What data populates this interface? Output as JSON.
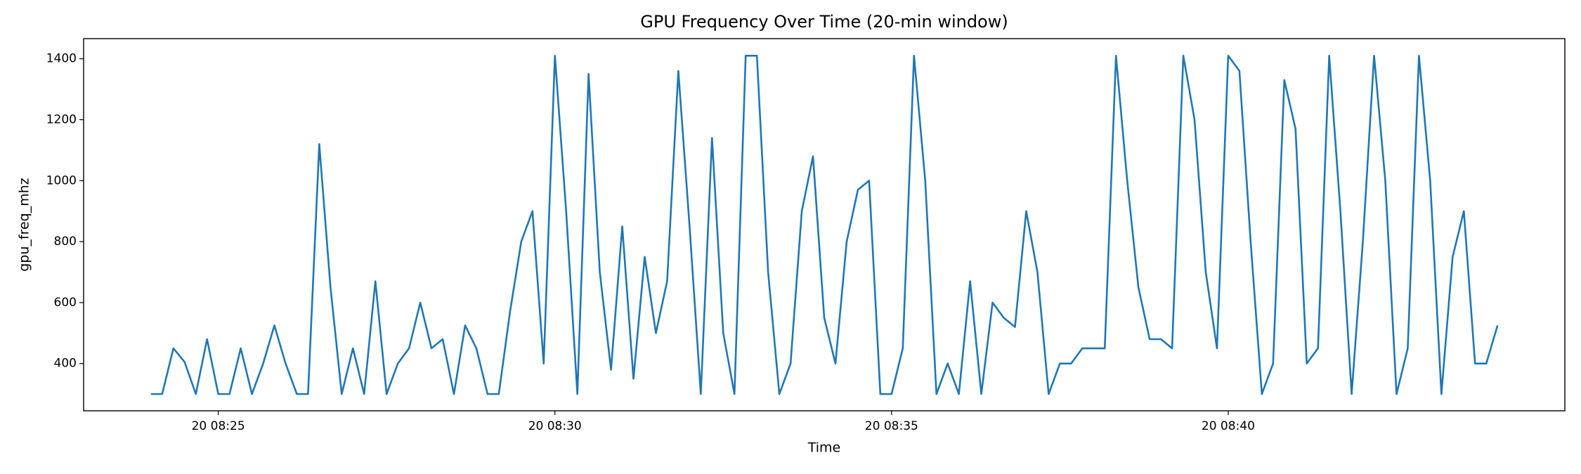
{
  "chart_data": {
    "type": "line",
    "title": "GPU Frequency Over Time (20-min window)",
    "x_label": "Time",
    "y_label": "gpu_freq_mhz",
    "x": [
      "20 08:24:00",
      "20 08:24:10",
      "20 08:24:20",
      "20 08:24:30",
      "20 08:24:40",
      "20 08:24:50",
      "20 08:25:00",
      "20 08:25:10",
      "20 08:25:20",
      "20 08:25:30",
      "20 08:25:40",
      "20 08:25:50",
      "20 08:26:00",
      "20 08:26:10",
      "20 08:26:20",
      "20 08:26:30",
      "20 08:26:40",
      "20 08:26:50",
      "20 08:27:00",
      "20 08:27:10",
      "20 08:27:20",
      "20 08:27:30",
      "20 08:27:40",
      "20 08:27:50",
      "20 08:28:00",
      "20 08:28:10",
      "20 08:28:20",
      "20 08:28:30",
      "20 08:28:40",
      "20 08:28:50",
      "20 08:29:00",
      "20 08:29:10",
      "20 08:29:20",
      "20 08:29:30",
      "20 08:29:40",
      "20 08:29:50",
      "20 08:30:00",
      "20 08:30:10",
      "20 08:30:20",
      "20 08:30:30",
      "20 08:30:40",
      "20 08:30:50",
      "20 08:31:00",
      "20 08:31:10",
      "20 08:31:20",
      "20 08:31:30",
      "20 08:31:40",
      "20 08:31:50",
      "20 08:32:00",
      "20 08:32:10",
      "20 08:32:20",
      "20 08:32:30",
      "20 08:32:40",
      "20 08:32:50",
      "20 08:33:00",
      "20 08:33:10",
      "20 08:33:20",
      "20 08:33:30",
      "20 08:33:40",
      "20 08:33:50",
      "20 08:34:00",
      "20 08:34:10",
      "20 08:34:20",
      "20 08:34:30",
      "20 08:34:40",
      "20 08:34:50",
      "20 08:35:00",
      "20 08:35:10",
      "20 08:35:20",
      "20 08:35:30",
      "20 08:35:40",
      "20 08:35:50",
      "20 08:36:00",
      "20 08:36:10",
      "20 08:36:20",
      "20 08:36:30",
      "20 08:36:40",
      "20 08:36:50",
      "20 08:37:00",
      "20 08:37:10",
      "20 08:37:20",
      "20 08:37:30",
      "20 08:37:40",
      "20 08:37:50",
      "20 08:38:00",
      "20 08:38:10",
      "20 08:38:20",
      "20 08:38:30",
      "20 08:38:40",
      "20 08:38:50",
      "20 08:39:00",
      "20 08:39:10",
      "20 08:39:20",
      "20 08:39:30",
      "20 08:39:40",
      "20 08:39:50",
      "20 08:40:00",
      "20 08:40:10",
      "20 08:40:20",
      "20 08:40:30",
      "20 08:40:40",
      "20 08:40:50",
      "20 08:41:00",
      "20 08:41:10",
      "20 08:41:20",
      "20 08:41:30",
      "20 08:41:40",
      "20 08:41:50",
      "20 08:42:00",
      "20 08:42:10",
      "20 08:42:20",
      "20 08:42:30",
      "20 08:42:40",
      "20 08:42:50",
      "20 08:43:00",
      "20 08:43:10",
      "20 08:43:20",
      "20 08:43:30",
      "20 08:43:40",
      "20 08:43:50",
      "20 08:44:00"
    ],
    "series": [
      {
        "name": "gpu_freq_mhz",
        "color": "#1f77b4",
        "values": [
          300,
          300,
          450,
          405,
          300,
          480,
          300,
          300,
          450,
          300,
          400,
          525,
          400,
          300,
          300,
          1120,
          650,
          300,
          450,
          300,
          670,
          300,
          400,
          450,
          600,
          450,
          480,
          300,
          525,
          450,
          300,
          300,
          570,
          800,
          900,
          400,
          1410,
          900,
          300,
          1350,
          700,
          380,
          850,
          350,
          750,
          500,
          670,
          1360,
          850,
          300,
          1140,
          500,
          300,
          1410,
          1410,
          700,
          300,
          400,
          900,
          1080,
          550,
          400,
          800,
          970,
          1000,
          300,
          300,
          450,
          1410,
          1000,
          300,
          400,
          300,
          670,
          300,
          600,
          550,
          520,
          900,
          700,
          300,
          400,
          400,
          450,
          450,
          450,
          1410,
          1000,
          650,
          480,
          480,
          450,
          1410,
          1200,
          700,
          450,
          1410,
          1360,
          800,
          300,
          400,
          1330,
          1170,
          400,
          450,
          1410,
          900,
          300,
          800,
          1410,
          1000,
          300,
          450,
          1410,
          1000,
          300,
          750,
          900,
          400,
          400,
          525
        ]
      }
    ],
    "xlim": [
      "20 08:23",
      "20 08:45"
    ],
    "xticks": [
      "20 08:25",
      "20 08:30",
      "20 08:35",
      "20 08:40"
    ],
    "ylim": [
      245,
      1466
    ],
    "yticks": [
      400,
      600,
      800,
      1000,
      1200,
      1400
    ]
  }
}
